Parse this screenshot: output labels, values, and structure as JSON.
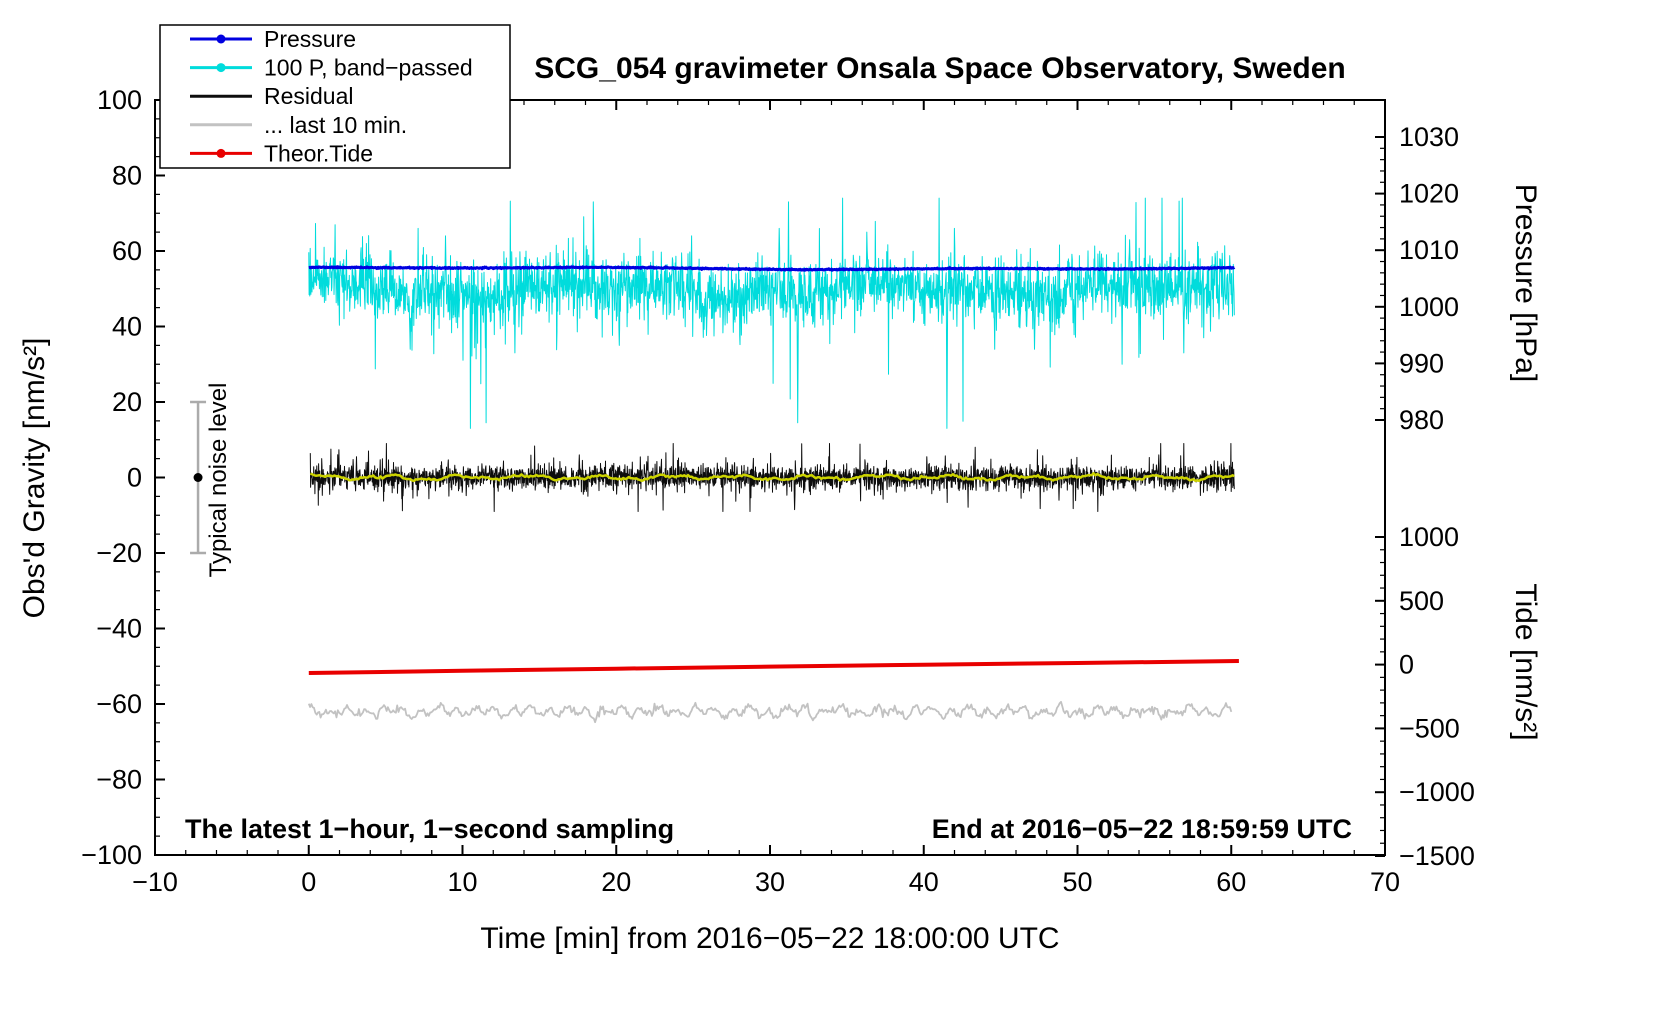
{
  "chart_data": {
    "type": "line",
    "title": "SCG_054 gravimeter Onsala Space Observatory, Sweden",
    "grid": false,
    "legend_position": "top-left",
    "axes": {
      "x": {
        "label": "Time [min] from 2016−05−22 18:00:00 UTC",
        "min": -10,
        "max": 70,
        "minor_step": 2,
        "tick_values": [
          -10,
          0,
          10,
          20,
          30,
          40,
          50,
          60,
          70
        ],
        "tick_labels": [
          "−10",
          "0",
          "10",
          "20",
          "30",
          "40",
          "50",
          "60",
          "70"
        ]
      },
      "gravity": {
        "label": "Obs'd Gravity [nm/s²]",
        "min": -100,
        "max": 100,
        "minor_step": 5,
        "tick_values": [
          -100,
          -80,
          -60,
          -40,
          -20,
          0,
          20,
          40,
          60,
          80,
          100
        ],
        "tick_labels": [
          "−100",
          "−80",
          "−60",
          "−40",
          "−20",
          "0",
          "20",
          "40",
          "60",
          "80",
          "100"
        ]
      },
      "pressure": {
        "label": "Pressure [hPa]",
        "min": 980,
        "max": 1030,
        "minor_step": 2,
        "tick_values": [
          1030,
          1020,
          1010,
          1000,
          990,
          980
        ],
        "tick_labels": [
          "1030",
          "1020",
          "1010",
          "1000",
          "990",
          "980"
        ]
      },
      "tide": {
        "label": "Tide [nm/s²]",
        "min": -1500,
        "max": 1000,
        "minor_step": 100,
        "tick_values": [
          1000,
          500,
          0,
          -500,
          -1000,
          -1500
        ],
        "tick_labels": [
          "1000",
          "500",
          "0",
          "−500",
          "−1000",
          "−1500"
        ]
      }
    },
    "series": [
      {
        "id": "pressure_bandpassed",
        "name": "100 P, band−passed",
        "axis": "gravity",
        "color": "#00dcdc",
        "width": 1,
        "x_start": 0,
        "x_end": 60.2,
        "n": 2600,
        "seed": 23,
        "baseline": 49.5,
        "noise_std": 4.2,
        "wander_amplitude": 2.5,
        "heavy_tail": 0.04,
        "clamp": [
          13,
          74
        ],
        "spikes": [
          [
            6.6,
            34
          ],
          [
            7.1,
            66
          ],
          [
            8.9,
            64
          ],
          [
            13.4,
            33
          ],
          [
            20.2,
            35
          ],
          [
            24.9,
            64
          ],
          [
            30.6,
            66
          ],
          [
            31.2,
            73
          ],
          [
            31.8,
            14.5
          ],
          [
            36.3,
            65
          ],
          [
            41.5,
            13
          ],
          [
            42.0,
            66
          ],
          [
            44.6,
            34
          ],
          [
            47.2,
            34
          ],
          [
            52.9,
            30
          ],
          [
            53.4,
            63
          ],
          [
            56.9,
            33
          ],
          [
            59.2,
            42
          ]
        ]
      },
      {
        "id": "pressure",
        "name": "Pressure",
        "axis": "pressure",
        "color": "#0000e0",
        "width": 3,
        "x_start": 0,
        "x_end": 60.2,
        "n": 1400,
        "seed": 11,
        "baseline": 1006.8,
        "noise_std": 0.05,
        "drift_amplitude": 0.25
      },
      {
        "id": "residual",
        "name": "Residual",
        "axis": "gravity",
        "color": "#0d0d0d",
        "width": 1,
        "x_start": 0.1,
        "x_end": 60.2,
        "n": 3000,
        "seed": 37,
        "baseline": 0,
        "noise_std": 1.7,
        "heavy_tail": 0.05,
        "clamp": [
          -9,
          9
        ],
        "spikes": [
          [
            3.1,
            5.5
          ],
          [
            17.6,
            6
          ],
          [
            31.6,
            -8.5
          ],
          [
            40.2,
            5.5
          ],
          [
            48.8,
            -6
          ],
          [
            55.3,
            6
          ]
        ]
      },
      {
        "id": "residual_lowpass",
        "name": "Residual low−pass (yellow)",
        "axis": "gravity",
        "color": "#ccd300",
        "width": 2.5,
        "x_start": 0.1,
        "x_end": 60.2,
        "n": 500,
        "seed": 51,
        "baseline": 0,
        "smooth_amplitude": 0.9,
        "smooth_freqs": [
          83,
          199,
          31
        ],
        "noise_std": 0.15
      },
      {
        "id": "last10min",
        "name": "... last 10 min.",
        "axis": "gravity",
        "color": "#c2c2c2",
        "width": 1.8,
        "x_start": 0,
        "x_end": 60.0,
        "n": 700,
        "seed": 77,
        "baseline": -62,
        "smooth_amplitude": 1.8,
        "smooth_freqs": [
          317,
          131,
          479
        ],
        "noise_std": 0.5,
        "clamp": [
          -67,
          -57
        ]
      },
      {
        "id": "theor_tide",
        "name": "Theor.Tide",
        "axis": "gravity",
        "color": "#e80000",
        "width": 4,
        "points": [
          [
            0,
            -51.8
          ],
          [
            10,
            -51.2
          ],
          [
            20,
            -50.65
          ],
          [
            30,
            -50.1
          ],
          [
            40,
            -49.6
          ],
          [
            50,
            -49.15
          ],
          [
            60.5,
            -48.6
          ]
        ]
      }
    ],
    "noise_level_marker": {
      "x": -7.2,
      "center": 0,
      "half_range": 20,
      "label": "Typical noise level",
      "bar_color": "#ababab",
      "dot_color": "#000000"
    },
    "legend": [
      {
        "label": "Pressure",
        "color": "#0000e0",
        "marker": true
      },
      {
        "label": "100 P, band−passed",
        "color": "#00dcdc",
        "marker": true
      },
      {
        "label": "Residual",
        "color": "#0d0d0d",
        "marker": false
      },
      {
        "label": "... last 10 min.",
        "color": "#c2c2c2",
        "marker": false
      },
      {
        "label": "Theor.Tide",
        "color": "#e80000",
        "marker": true
      }
    ],
    "annotations": {
      "sampling_note": "The latest 1−hour, 1−second sampling",
      "end_time_note": "End at 2016−05−22 18:59:59 UTC"
    }
  }
}
